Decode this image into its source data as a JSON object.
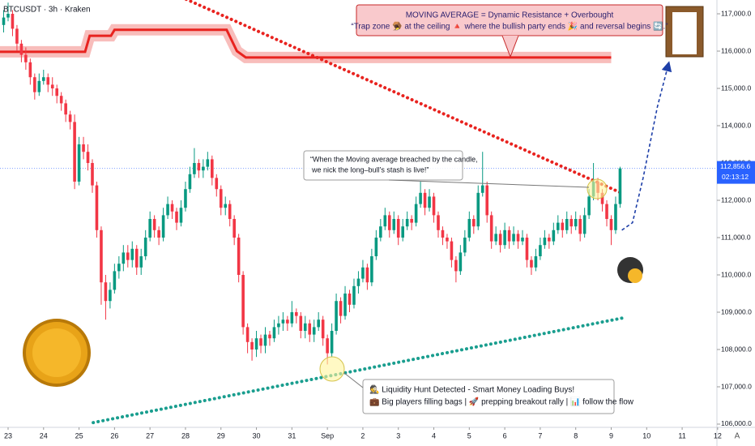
{
  "chart_data": {
    "type": "candlestick",
    "title": "BTCUSDT · 3h · Kraken",
    "up_color": "#089981",
    "down_color": "#f23645",
    "xlim": [
      22.772,
      42.98
    ],
    "ylim": [
      105913,
      117370
    ],
    "xticks": [
      23,
      24,
      25,
      26,
      27,
      28,
      29,
      30,
      31,
      {
        "value": 32,
        "label": "Sep"
      },
      {
        "value": 33,
        "label": "2"
      },
      {
        "value": 34,
        "label": "3"
      },
      {
        "value": 35,
        "label": "4"
      },
      {
        "value": 36,
        "label": "5"
      },
      {
        "value": 37,
        "label": "6"
      },
      {
        "value": 38,
        "label": "7"
      },
      {
        "value": 39,
        "label": "8"
      },
      {
        "value": 40,
        "label": "9"
      },
      {
        "value": 41,
        "label": "10"
      },
      {
        "value": 42,
        "label": "11"
      },
      {
        "value": 43,
        "label": "12"
      }
    ],
    "yticks": [
      {
        "value": 106000,
        "label": "106,000.0"
      },
      {
        "value": 107000,
        "label": "107,000.0"
      },
      {
        "value": 108000,
        "label": "108,000.0"
      },
      {
        "value": 109000,
        "label": "109,000.0"
      },
      {
        "value": 110000,
        "label": "110,000.0"
      },
      {
        "value": 111000,
        "label": "111,000.0"
      },
      {
        "value": 112000,
        "label": "112,000.0"
      },
      {
        "value": 113000,
        "label": "113,000.0"
      },
      {
        "value": 114000,
        "label": "114,000.0"
      },
      {
        "value": 115000,
        "label": "115,000.0"
      },
      {
        "value": 116000,
        "label": "116,000.0"
      },
      {
        "value": 117000,
        "label": "117,000.0"
      }
    ],
    "x": [
      22.875,
      23,
      23.125,
      23.25,
      23.375,
      23.5,
      23.625,
      23.75,
      23.875,
      24,
      24.125,
      24.25,
      24.375,
      24.5,
      24.625,
      24.75,
      24.875,
      25,
      25.125,
      25.25,
      25.375,
      25.5,
      25.625,
      25.75,
      25.875,
      26,
      26.125,
      26.25,
      26.375,
      26.5,
      26.625,
      26.75,
      26.875,
      27,
      27.125,
      27.25,
      27.375,
      27.5,
      27.625,
      27.75,
      27.875,
      28,
      28.125,
      28.25,
      28.375,
      28.5,
      28.625,
      28.75,
      28.875,
      29,
      29.125,
      29.25,
      29.375,
      29.5,
      29.625,
      29.75,
      29.875,
      30,
      30.125,
      30.25,
      30.375,
      30.5,
      30.625,
      30.75,
      30.875,
      31,
      31.125,
      31.25,
      31.375,
      31.5,
      31.625,
      31.75,
      31.875,
      32,
      32.125,
      32.25,
      32.375,
      32.5,
      32.625,
      32.75,
      32.875,
      33,
      33.125,
      33.25,
      33.375,
      33.5,
      33.625,
      33.75,
      33.875,
      34,
      34.125,
      34.25,
      34.375,
      34.5,
      34.625,
      34.75,
      34.875,
      35,
      35.125,
      35.25,
      35.375,
      35.5,
      35.625,
      35.75,
      35.875,
      36,
      36.125,
      36.25,
      36.375,
      36.5,
      36.625,
      36.75,
      36.875,
      37,
      37.125,
      37.25,
      37.375,
      37.5,
      37.625,
      37.75,
      37.875,
      38,
      38.125,
      38.25,
      38.375,
      38.5,
      38.625,
      38.75,
      38.875,
      39,
      39.125,
      39.25,
      39.375,
      39.5,
      39.625,
      39.75,
      39.875,
      40,
      40.125,
      40.25
    ],
    "open": [
      116700,
      116900,
      117000,
      116600,
      116200,
      115900,
      115700,
      115300,
      114900,
      115200,
      115300,
      115100,
      115000,
      114800,
      114600,
      114300,
      114100,
      112500,
      113500,
      113300,
      113000,
      112400,
      111200,
      109800,
      109300,
      109600,
      110100,
      110300,
      110600,
      110400,
      110700,
      110200,
      110500,
      111000,
      111500,
      111200,
      111000,
      111600,
      111900,
      111700,
      111400,
      111800,
      112300,
      112700,
      113000,
      112800,
      112900,
      113100,
      112600,
      112300,
      111800,
      111900,
      111500,
      111000,
      110000,
      108600,
      108200,
      108000,
      108300,
      108100,
      108400,
      108300,
      108600,
      108700,
      108800,
      108700,
      109000,
      108900,
      108500,
      108700,
      108400,
      108600,
      108800,
      108300,
      107900,
      108500,
      109300,
      108900,
      109500,
      109200,
      109700,
      109900,
      110200,
      109800,
      110500,
      111000,
      111300,
      111600,
      111200,
      111500,
      111000,
      111300,
      111500,
      111400,
      111900,
      112200,
      111800,
      112100,
      111600,
      111200,
      111000,
      110900,
      110400,
      110100,
      110600,
      111000,
      111500,
      111300,
      112200,
      112400,
      111600,
      110900,
      111100,
      110800,
      111200,
      110900,
      111100,
      110900,
      111000,
      110400,
      110200,
      110500,
      110800,
      111000,
      110900,
      111200,
      111400,
      111200,
      111500,
      111300,
      111500,
      111100,
      111600,
      112100,
      112500,
      112200,
      111900,
      111500,
      111200,
      111900
    ],
    "high": [
      117100,
      117300,
      117100,
      116700,
      116300,
      116100,
      115800,
      115400,
      115400,
      115500,
      115400,
      115300,
      115100,
      114900,
      114700,
      114400,
      114300,
      113700,
      113700,
      113500,
      113100,
      112500,
      111300,
      110000,
      109800,
      110300,
      110500,
      110800,
      110800,
      110900,
      110800,
      110700,
      111200,
      111700,
      111600,
      111300,
      111800,
      112100,
      112000,
      111800,
      112000,
      112500,
      112900,
      113400,
      113100,
      113100,
      113300,
      113200,
      112700,
      112400,
      112100,
      112000,
      111600,
      111100,
      110100,
      108700,
      108300,
      108500,
      108400,
      108600,
      108500,
      108800,
      108900,
      109000,
      108900,
      109300,
      109100,
      109000,
      108900,
      108800,
      108800,
      109000,
      108900,
      108400,
      108700,
      109500,
      109400,
      109700,
      109600,
      109900,
      110100,
      110400,
      110300,
      110700,
      111200,
      111500,
      111800,
      111700,
      111700,
      111600,
      111500,
      111700,
      111600,
      112100,
      112500,
      112300,
      112300,
      112200,
      111700,
      111300,
      111100,
      111000,
      110500,
      110800,
      111200,
      111700,
      111600,
      112400,
      113300,
      112500,
      111700,
      111300,
      111200,
      111400,
      111300,
      111300,
      111200,
      111200,
      111100,
      110500,
      110700,
      111000,
      111200,
      111100,
      111400,
      111600,
      111500,
      111700,
      111600,
      111700,
      111600,
      111800,
      112300,
      113000,
      112600,
      112300,
      112000,
      111600,
      112100,
      112900
    ],
    "low": [
      116500,
      116800,
      116400,
      116000,
      115700,
      115500,
      115100,
      114700,
      114800,
      115100,
      114900,
      114800,
      114600,
      114400,
      114100,
      113900,
      112300,
      112400,
      113100,
      112800,
      112200,
      111000,
      109200,
      108800,
      109100,
      109500,
      109900,
      110100,
      110200,
      110200,
      110000,
      110000,
      110400,
      110900,
      111000,
      110800,
      110900,
      111500,
      111500,
      111200,
      111300,
      111700,
      112200,
      112600,
      112600,
      112600,
      112800,
      112400,
      112100,
      111600,
      111600,
      111300,
      110800,
      109800,
      108400,
      107900,
      107700,
      107800,
      107900,
      107900,
      108100,
      108200,
      108400,
      108500,
      108500,
      108600,
      108700,
      108300,
      108300,
      108200,
      108200,
      108500,
      108100,
      107600,
      107800,
      108400,
      108700,
      108800,
      109000,
      109100,
      109500,
      109800,
      109600,
      109700,
      110400,
      110900,
      111200,
      111000,
      111100,
      110800,
      110900,
      111200,
      111200,
      111300,
      111800,
      111600,
      111700,
      111400,
      111000,
      110800,
      110700,
      110200,
      109800,
      110000,
      110500,
      110900,
      111100,
      111200,
      112100,
      111400,
      110700,
      110800,
      110600,
      110700,
      110700,
      110800,
      110700,
      110800,
      110200,
      110000,
      110100,
      110400,
      110700,
      110700,
      110800,
      111100,
      111000,
      111100,
      111100,
      111200,
      110900,
      111000,
      111500,
      112000,
      112000,
      111700,
      111300,
      110800,
      111100,
      111800
    ],
    "close": [
      116900,
      117000,
      116600,
      116200,
      115900,
      115700,
      115300,
      114900,
      115200,
      115300,
      115100,
      115000,
      114800,
      114600,
      114300,
      114100,
      112500,
      113500,
      113300,
      113000,
      112400,
      111200,
      109800,
      109300,
      109600,
      110100,
      110300,
      110600,
      110400,
      110700,
      110200,
      110500,
      111000,
      111500,
      111200,
      111000,
      111600,
      111900,
      111700,
      111400,
      111800,
      112300,
      112700,
      113000,
      112800,
      112900,
      113100,
      112600,
      112300,
      111800,
      111900,
      111500,
      111000,
      110000,
      108600,
      108200,
      108000,
      108300,
      108100,
      108400,
      108300,
      108600,
      108700,
      108800,
      108700,
      109000,
      108900,
      108500,
      108700,
      108400,
      108600,
      108800,
      108300,
      107900,
      108500,
      109300,
      108900,
      109500,
      109200,
      109700,
      109900,
      110200,
      109800,
      110500,
      111000,
      111300,
      111600,
      111200,
      111500,
      111000,
      111300,
      111500,
      111400,
      111900,
      112200,
      111800,
      112100,
      111600,
      111200,
      111000,
      110900,
      110400,
      110100,
      110600,
      111000,
      111500,
      111300,
      112200,
      112400,
      111600,
      110900,
      111100,
      110800,
      111200,
      110900,
      111100,
      110900,
      111000,
      110400,
      110200,
      110500,
      110800,
      111000,
      110900,
      111200,
      111400,
      111200,
      111500,
      111300,
      111500,
      111100,
      111600,
      112100,
      112500,
      112200,
      111900,
      111500,
      111200,
      111900,
      112856.6
    ],
    "overlays": [
      {
        "style": "band",
        "color": "#e8231f",
        "x": [
          22.772,
          25.17,
          25.3,
          25.9,
          26.0,
          29.16,
          29.45,
          29.7,
          40.0
        ],
        "values": [
          115980,
          115980,
          116410,
          116410,
          116570,
          116570,
          116000,
          115830,
          115830
        ]
      },
      {
        "style": "dotted",
        "color": "#e8231f",
        "x": [
          28.02,
          40.35
        ],
        "values": [
          117390,
          112170
        ]
      },
      {
        "style": "dotted",
        "color": "#1a9e8f",
        "x": [
          25.4,
          40.35
        ],
        "values": [
          106040,
          108850
        ]
      },
      {
        "style": "dashed",
        "color": "#1e3fa8",
        "x": [
          40.3,
          40.6,
          40.9,
          41.3,
          41.6
        ],
        "values": [
          111200,
          111400,
          112600,
          114500,
          115600
        ]
      }
    ],
    "price_label": {
      "value": 112856.6,
      "label": "112,856.6"
    },
    "countdown": "02:13:12",
    "axis_mode": "A",
    "annotations": [
      {
        "lines": [
          "MOVING AVERAGE = Dynamic Resistance + Overbought",
          "“Trap zone 🪤 at the ceiling 🔺 where the bullish party ends 🎉 and reversal begins 🔄.”"
        ]
      },
      {
        "lines": [
          "“When the Moving average breached by the candle,",
          "we nick the long–bull’s stash is live!”"
        ]
      },
      {
        "lines": [
          "🕵️ Liquidity Hunt Detected - Smart Money Loading Buys!",
          "💼 Big players filling bags | 🚀 prepping breakout rally | 📊 follow the flow"
        ]
      }
    ]
  }
}
